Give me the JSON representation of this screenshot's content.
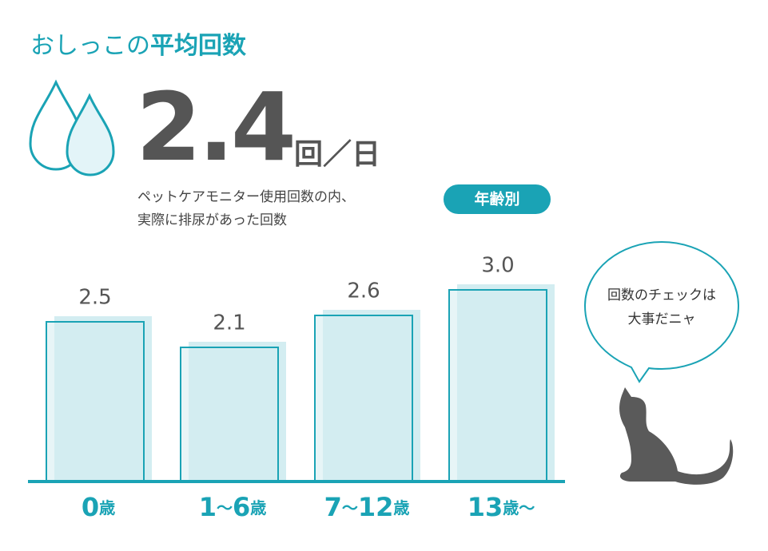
{
  "title": "おしっこの",
  "title_bold": "平均回数",
  "headline": {
    "value": "2.4",
    "unit": "回／日"
  },
  "description": [
    "ペットケアモニター使用回数の内、",
    "実際に排尿があった回数"
  ],
  "badge": "年齢別",
  "speech": [
    "回数のチェックは",
    "大事だニャ"
  ],
  "chart_data": {
    "type": "bar",
    "categories": [
      "0歳",
      "1〜6歳",
      "7〜12歳",
      "13歳〜"
    ],
    "values": [
      2.5,
      2.1,
      2.6,
      3.0
    ],
    "value_labels": [
      "2.5",
      "2.1",
      "2.6",
      "3.0"
    ],
    "color": "#d3edf1",
    "edge_color": "#1aa3b5"
  }
}
